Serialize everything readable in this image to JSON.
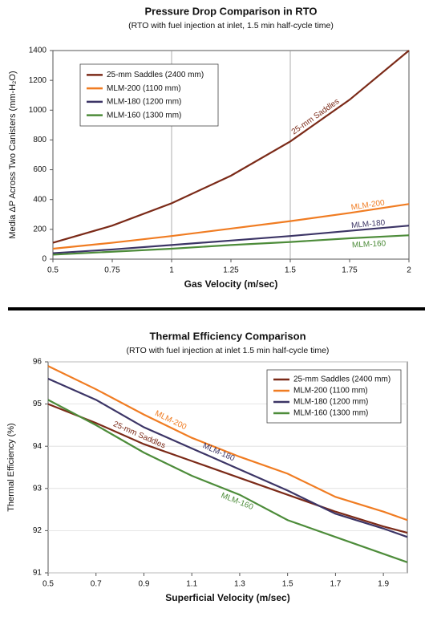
{
  "chart_data": [
    {
      "type": "line",
      "title": "Pressure Drop Comparison in RTO",
      "subtitle": "(RTO with fuel injection at inlet, 1.5 min half-cycle time)",
      "x_label": "Gas Velocity (m/sec)",
      "y_label": "Media ΔP Across Two Canisters (mm-H₂O)",
      "x": [
        0.5,
        0.75,
        1,
        1.25,
        1.5,
        1.75,
        2
      ],
      "xlim": [
        0.5,
        2
      ],
      "xticks": [
        0.5,
        0.75,
        1,
        1.25,
        1.5,
        1.75,
        2
      ],
      "ylim": [
        0,
        1400
      ],
      "yticks": [
        0,
        200,
        400,
        600,
        800,
        1000,
        1200,
        1400
      ],
      "xgrid": [
        1,
        1.5
      ],
      "legend": "upper-left",
      "series": [
        {
          "name": "25-mm Saddles (2400 mm)",
          "label": "25-mm Saddles",
          "color": "#7b2a18",
          "values": [
            110,
            225,
            375,
            560,
            790,
            1070,
            1400
          ]
        },
        {
          "name": "MLM-200 (1100 mm)",
          "label": "MLM-200",
          "color": "#f07c22",
          "values": [
            70,
            110,
            155,
            205,
            255,
            310,
            370
          ]
        },
        {
          "name": "MLM-180 (1200 mm)",
          "label": "MLM-180",
          "color": "#3c3566",
          "values": [
            40,
            65,
            95,
            125,
            155,
            190,
            225
          ]
        },
        {
          "name": "MLM-160 (1300 mm)",
          "label": "MLM-160",
          "color": "#4d8c3a",
          "values": [
            30,
            50,
            70,
            95,
            115,
            140,
            160
          ]
        }
      ]
    },
    {
      "type": "line",
      "title": "Thermal Efficiency Comparison",
      "subtitle": "(RTO with fuel injection at inlet 1.5 min half-cycle time)",
      "x_label": "Superficial Velocity (m/sec)",
      "y_label": "Thermal Efficiency (%)",
      "x": [
        0.5,
        0.7,
        0.9,
        1.1,
        1.3,
        1.5,
        1.7,
        1.9,
        2.0
      ],
      "xlim": [
        0.5,
        2.0
      ],
      "xticks": [
        0.5,
        0.7,
        0.9,
        1.1,
        1.3,
        1.5,
        1.7,
        1.9
      ],
      "ylim": [
        91,
        96
      ],
      "yticks": [
        91,
        92,
        93,
        94,
        95,
        96
      ],
      "grid": "y",
      "legend": "upper-right",
      "series": [
        {
          "name": "25-mm Saddles (2400 mm)",
          "label": "25-mm Saddles",
          "color": "#7b2a18",
          "values": [
            95.0,
            94.55,
            94.05,
            93.65,
            93.25,
            92.85,
            92.45,
            92.1,
            91.95
          ]
        },
        {
          "name": "MLM-200 (1100 mm)",
          "label": "MLM-200",
          "color": "#f07c22",
          "values": [
            95.9,
            95.35,
            94.75,
            94.2,
            93.75,
            93.35,
            92.8,
            92.45,
            92.25
          ]
        },
        {
          "name": "MLM-180 (1200 mm)",
          "label": "MLM-180",
          "color": "#3c3566",
          "values": [
            95.6,
            95.1,
            94.45,
            93.95,
            93.45,
            92.95,
            92.4,
            92.05,
            91.85
          ]
        },
        {
          "name": "MLM-160 (1300 mm)",
          "label": "MLM-160",
          "color": "#4d8c3a",
          "values": [
            95.1,
            94.5,
            93.85,
            93.3,
            92.85,
            92.25,
            91.85,
            91.45,
            91.25
          ]
        }
      ]
    }
  ]
}
